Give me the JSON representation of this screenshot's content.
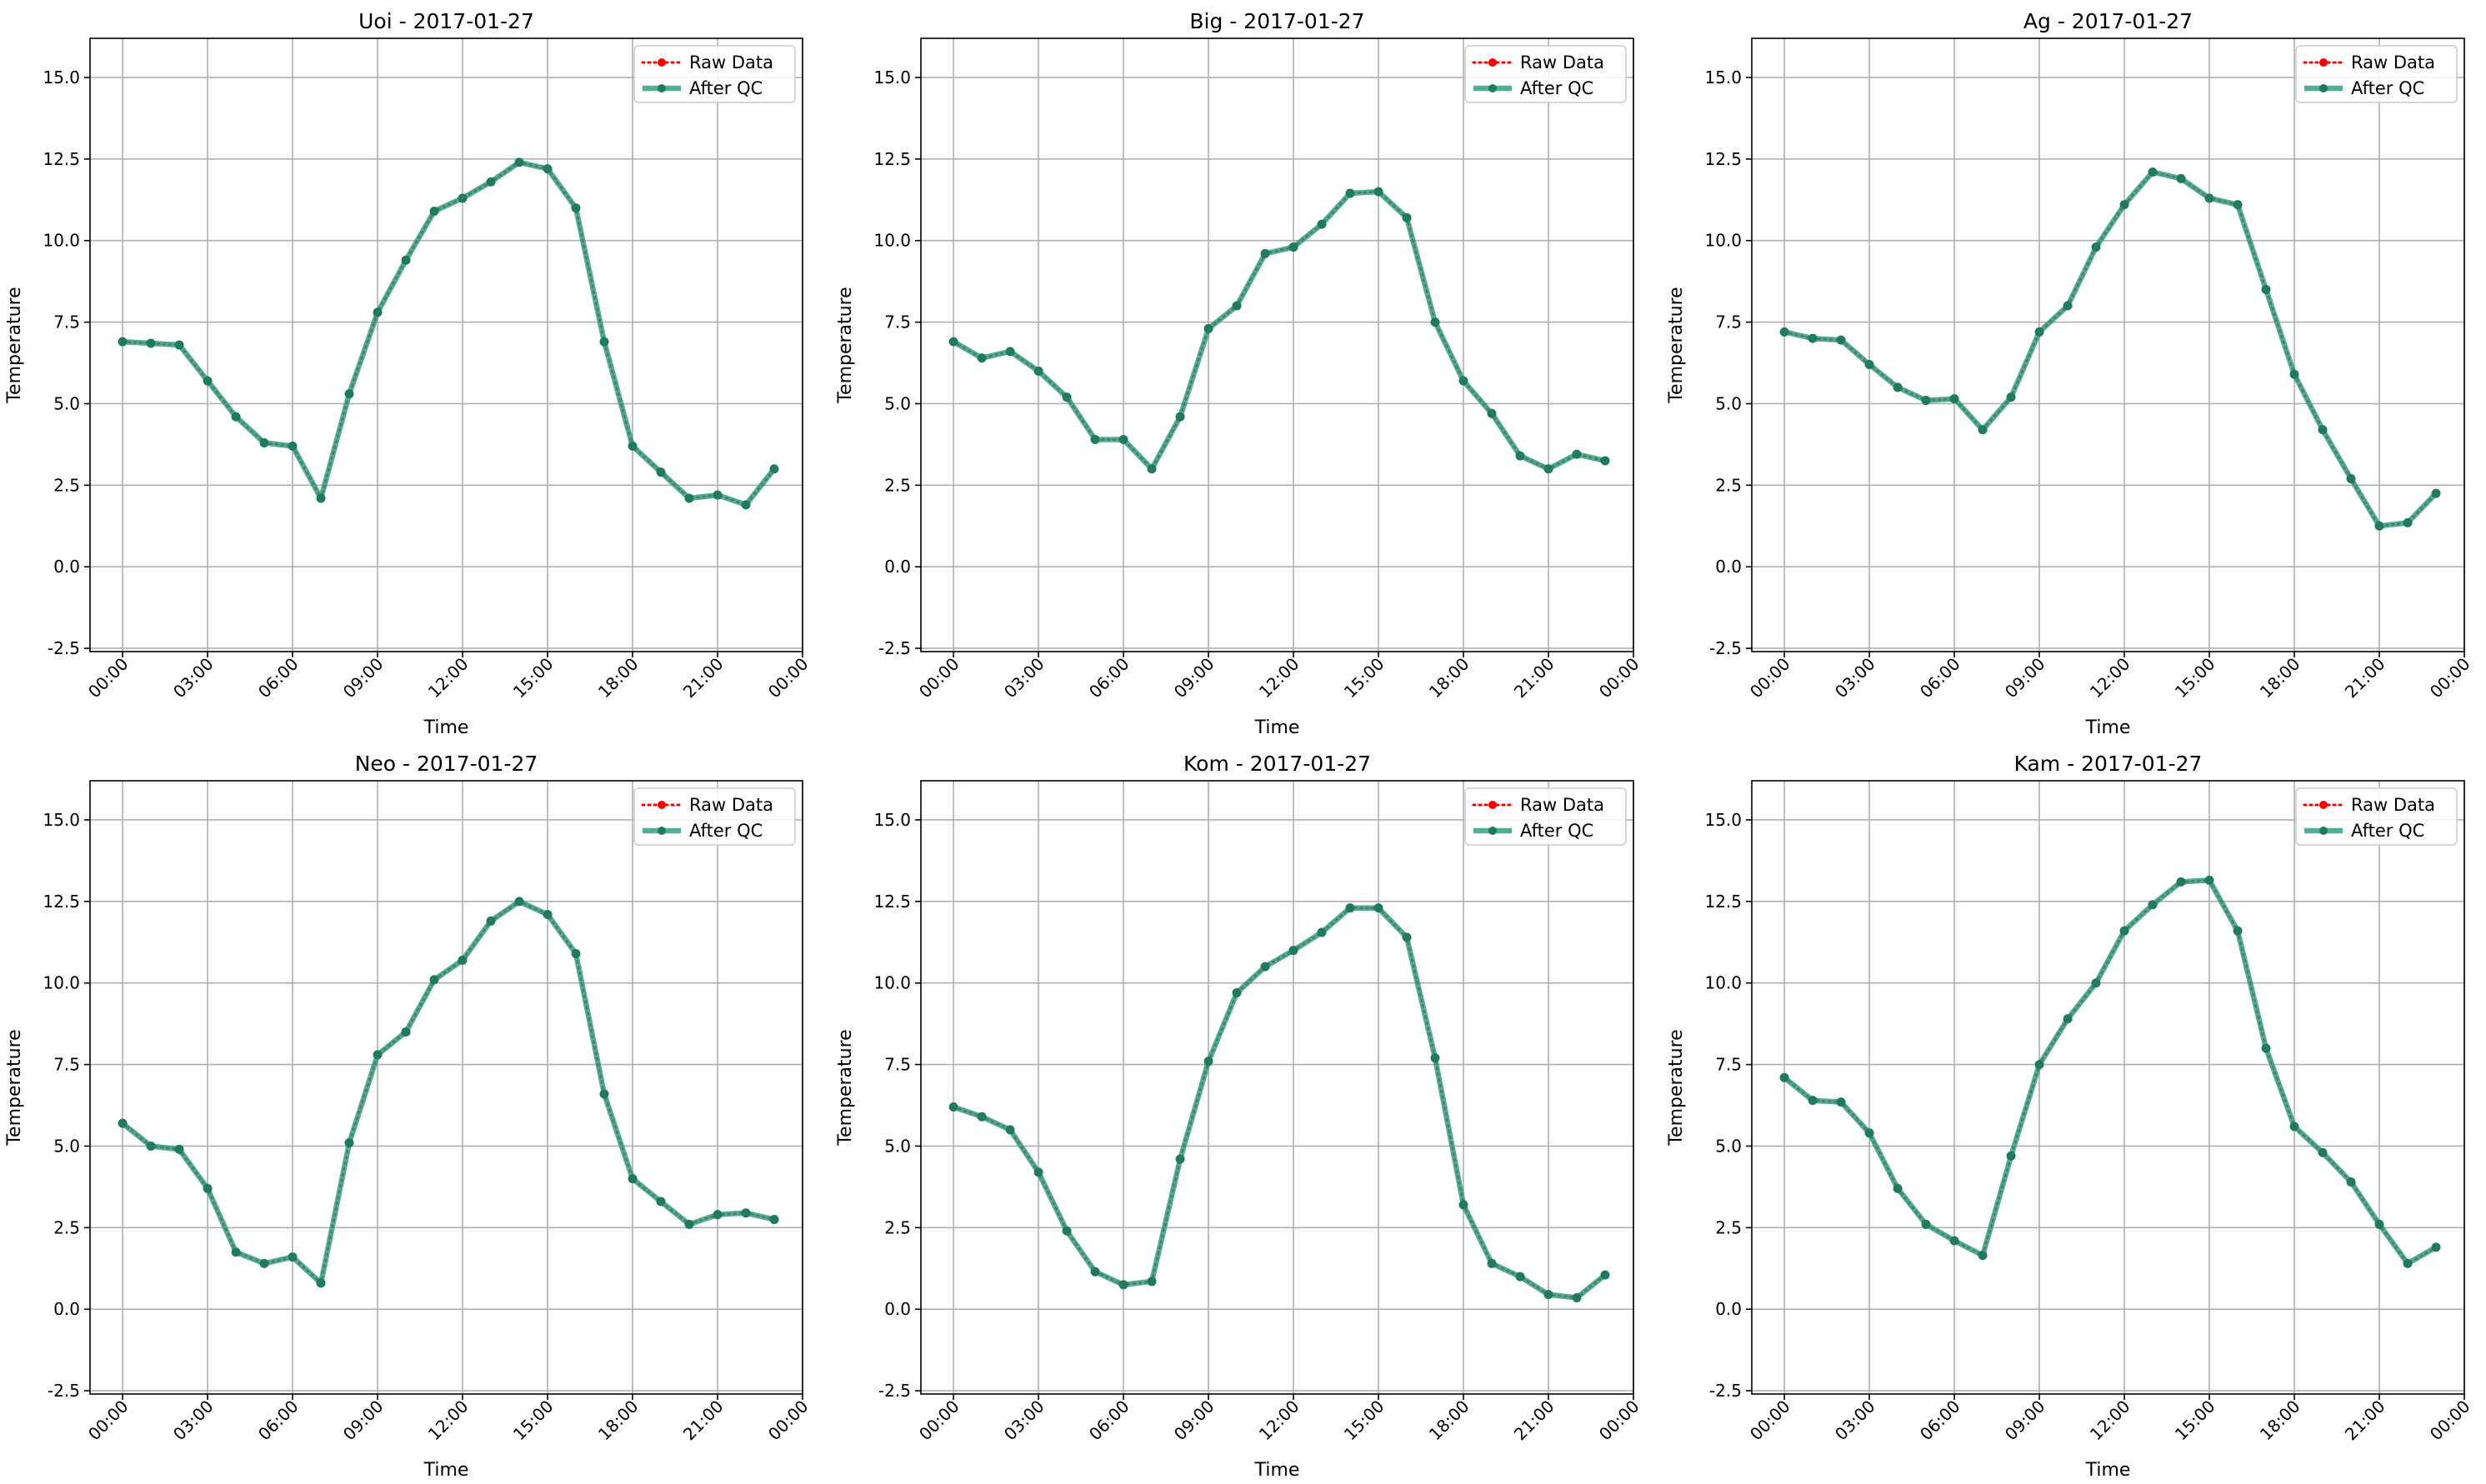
{
  "colors": {
    "raw": "#ff0000",
    "qc": "#2a9d7c",
    "grid": "#b0b0b0",
    "axes": "#000000"
  },
  "legend": {
    "raw_label": "Raw Data",
    "qc_label": "After QC",
    "placement": "upper right"
  },
  "chart_data": [
    {
      "type": "line",
      "title": "Uoi - 2017-01-27",
      "xlabel": "Time",
      "ylabel": "Temperature",
      "ylim": [
        -2.6,
        16.2
      ],
      "yticks": [
        -2.5,
        0.0,
        2.5,
        5.0,
        7.5,
        10.0,
        12.5,
        15.0
      ],
      "xticks": [
        "00:00",
        "03:00",
        "06:00",
        "09:00",
        "12:00",
        "15:00",
        "18:00",
        "21:00",
        "00:00"
      ],
      "x": [
        "00:00",
        "01:00",
        "02:00",
        "03:00",
        "04:00",
        "05:00",
        "06:00",
        "07:00",
        "08:00",
        "09:00",
        "10:00",
        "11:00",
        "12:00",
        "13:00",
        "14:00",
        "15:00",
        "16:00",
        "17:00",
        "18:00",
        "19:00",
        "20:00",
        "21:00",
        "22:00",
        "23:00"
      ],
      "grid": true,
      "series": [
        {
          "name": "Raw Data",
          "values": [
            6.9,
            6.85,
            6.8,
            5.7,
            4.6,
            3.8,
            3.7,
            2.1,
            5.3,
            7.8,
            9.4,
            10.9,
            11.3,
            11.8,
            12.4,
            12.2,
            11.0,
            6.9,
            3.7,
            2.9,
            2.1,
            2.2,
            1.9,
            3.0
          ]
        },
        {
          "name": "After QC",
          "values": [
            6.9,
            6.85,
            6.8,
            5.7,
            4.6,
            3.8,
            3.7,
            2.1,
            5.3,
            7.8,
            9.4,
            10.9,
            11.3,
            11.8,
            12.4,
            12.2,
            11.0,
            6.9,
            3.7,
            2.9,
            2.1,
            2.2,
            1.9,
            3.0
          ]
        }
      ]
    },
    {
      "type": "line",
      "title": "Big - 2017-01-27",
      "xlabel": "Time",
      "ylabel": "Temperature",
      "ylim": [
        -2.6,
        16.2
      ],
      "yticks": [
        -2.5,
        0.0,
        2.5,
        5.0,
        7.5,
        10.0,
        12.5,
        15.0
      ],
      "xticks": [
        "00:00",
        "03:00",
        "06:00",
        "09:00",
        "12:00",
        "15:00",
        "18:00",
        "21:00",
        "00:00"
      ],
      "x": [
        "00:00",
        "01:00",
        "02:00",
        "03:00",
        "04:00",
        "05:00",
        "06:00",
        "07:00",
        "08:00",
        "09:00",
        "10:00",
        "11:00",
        "12:00",
        "13:00",
        "14:00",
        "15:00",
        "16:00",
        "17:00",
        "18:00",
        "19:00",
        "20:00",
        "21:00",
        "22:00",
        "23:00"
      ],
      "grid": true,
      "series": [
        {
          "name": "Raw Data",
          "values": [
            6.9,
            6.4,
            6.6,
            6.0,
            5.2,
            3.9,
            3.9,
            3.0,
            4.6,
            7.3,
            8.0,
            9.6,
            9.8,
            10.5,
            11.45,
            11.5,
            10.7,
            7.5,
            5.7,
            4.7,
            3.4,
            3.0,
            3.45,
            3.25
          ]
        },
        {
          "name": "After QC",
          "values": [
            6.9,
            6.4,
            6.6,
            6.0,
            5.2,
            3.9,
            3.9,
            3.0,
            4.6,
            7.3,
            8.0,
            9.6,
            9.8,
            10.5,
            11.45,
            11.5,
            10.7,
            7.5,
            5.7,
            4.7,
            3.4,
            3.0,
            3.45,
            3.25
          ]
        }
      ]
    },
    {
      "type": "line",
      "title": "Ag - 2017-01-27",
      "xlabel": "Time",
      "ylabel": "Temperature",
      "ylim": [
        -2.6,
        16.2
      ],
      "yticks": [
        -2.5,
        0.0,
        2.5,
        5.0,
        7.5,
        10.0,
        12.5,
        15.0
      ],
      "xticks": [
        "00:00",
        "03:00",
        "06:00",
        "09:00",
        "12:00",
        "15:00",
        "18:00",
        "21:00",
        "00:00"
      ],
      "x": [
        "00:00",
        "01:00",
        "02:00",
        "03:00",
        "04:00",
        "05:00",
        "06:00",
        "07:00",
        "08:00",
        "09:00",
        "10:00",
        "11:00",
        "12:00",
        "13:00",
        "14:00",
        "15:00",
        "16:00",
        "17:00",
        "18:00",
        "19:00",
        "20:00",
        "21:00",
        "22:00",
        "23:00"
      ],
      "grid": true,
      "series": [
        {
          "name": "Raw Data",
          "values": [
            7.2,
            7.0,
            6.95,
            6.2,
            5.5,
            5.1,
            5.15,
            4.2,
            5.2,
            7.2,
            8.0,
            9.8,
            11.1,
            12.1,
            11.9,
            11.3,
            11.1,
            8.5,
            5.9,
            4.2,
            2.7,
            1.25,
            1.35,
            2.25
          ]
        },
        {
          "name": "After QC",
          "values": [
            7.2,
            7.0,
            6.95,
            6.2,
            5.5,
            5.1,
            5.15,
            4.2,
            5.2,
            7.2,
            8.0,
            9.8,
            11.1,
            12.1,
            11.9,
            11.3,
            11.1,
            8.5,
            5.9,
            4.2,
            2.7,
            1.25,
            1.35,
            2.25
          ]
        }
      ]
    },
    {
      "type": "line",
      "title": "Neo - 2017-01-27",
      "xlabel": "Time",
      "ylabel": "Temperature",
      "ylim": [
        -2.6,
        16.2
      ],
      "yticks": [
        -2.5,
        0.0,
        2.5,
        5.0,
        7.5,
        10.0,
        12.5,
        15.0
      ],
      "xticks": [
        "00:00",
        "03:00",
        "06:00",
        "09:00",
        "12:00",
        "15:00",
        "18:00",
        "21:00",
        "00:00"
      ],
      "x": [
        "00:00",
        "01:00",
        "02:00",
        "03:00",
        "04:00",
        "05:00",
        "06:00",
        "07:00",
        "08:00",
        "09:00",
        "10:00",
        "11:00",
        "12:00",
        "13:00",
        "14:00",
        "15:00",
        "16:00",
        "17:00",
        "18:00",
        "19:00",
        "20:00",
        "21:00",
        "22:00",
        "23:00"
      ],
      "grid": true,
      "series": [
        {
          "name": "Raw Data",
          "values": [
            5.7,
            5.0,
            4.9,
            3.7,
            1.75,
            1.4,
            1.6,
            0.8,
            5.1,
            7.8,
            8.5,
            10.1,
            10.7,
            11.9,
            12.5,
            12.1,
            10.9,
            6.6,
            4.0,
            3.3,
            2.6,
            2.9,
            2.95,
            2.75
          ]
        },
        {
          "name": "After QC",
          "values": [
            5.7,
            5.0,
            4.9,
            3.7,
            1.75,
            1.4,
            1.6,
            0.8,
            5.1,
            7.8,
            8.5,
            10.1,
            10.7,
            11.9,
            12.5,
            12.1,
            10.9,
            6.6,
            4.0,
            3.3,
            2.6,
            2.9,
            2.95,
            2.75
          ]
        }
      ]
    },
    {
      "type": "line",
      "title": "Kom - 2017-01-27",
      "xlabel": "Time",
      "ylabel": "Temperature",
      "ylim": [
        -2.6,
        16.2
      ],
      "yticks": [
        -2.5,
        0.0,
        2.5,
        5.0,
        7.5,
        10.0,
        12.5,
        15.0
      ],
      "xticks": [
        "00:00",
        "03:00",
        "06:00",
        "09:00",
        "12:00",
        "15:00",
        "18:00",
        "21:00",
        "00:00"
      ],
      "x": [
        "00:00",
        "01:00",
        "02:00",
        "03:00",
        "04:00",
        "05:00",
        "06:00",
        "07:00",
        "08:00",
        "09:00",
        "10:00",
        "11:00",
        "12:00",
        "13:00",
        "14:00",
        "15:00",
        "16:00",
        "17:00",
        "18:00",
        "19:00",
        "20:00",
        "21:00",
        "22:00",
        "23:00"
      ],
      "grid": true,
      "series": [
        {
          "name": "Raw Data",
          "values": [
            6.2,
            5.9,
            5.5,
            4.2,
            2.4,
            1.15,
            0.75,
            0.85,
            4.6,
            7.6,
            9.7,
            10.5,
            11.0,
            11.55,
            12.3,
            12.3,
            11.4,
            7.7,
            3.2,
            1.4,
            1.0,
            0.45,
            0.35,
            1.05
          ]
        },
        {
          "name": "After QC",
          "values": [
            6.2,
            5.9,
            5.5,
            4.2,
            2.4,
            1.15,
            0.75,
            0.85,
            4.6,
            7.6,
            9.7,
            10.5,
            11.0,
            11.55,
            12.3,
            12.3,
            11.4,
            7.7,
            3.2,
            1.4,
            1.0,
            0.45,
            0.35,
            1.05
          ]
        }
      ]
    },
    {
      "type": "line",
      "title": "Kam - 2017-01-27",
      "xlabel": "Time",
      "ylabel": "Temperature",
      "ylim": [
        -2.6,
        16.2
      ],
      "yticks": [
        -2.5,
        0.0,
        2.5,
        5.0,
        7.5,
        10.0,
        12.5,
        15.0
      ],
      "xticks": [
        "00:00",
        "03:00",
        "06:00",
        "09:00",
        "12:00",
        "15:00",
        "18:00",
        "21:00",
        "00:00"
      ],
      "x": [
        "00:00",
        "01:00",
        "02:00",
        "03:00",
        "04:00",
        "05:00",
        "06:00",
        "07:00",
        "08:00",
        "09:00",
        "10:00",
        "11:00",
        "12:00",
        "13:00",
        "14:00",
        "15:00",
        "16:00",
        "17:00",
        "18:00",
        "19:00",
        "20:00",
        "21:00",
        "22:00",
        "23:00"
      ],
      "grid": true,
      "series": [
        {
          "name": "Raw Data",
          "values": [
            7.1,
            6.4,
            6.35,
            5.4,
            3.7,
            2.6,
            2.1,
            1.65,
            4.7,
            7.5,
            8.9,
            10.0,
            11.6,
            12.4,
            13.1,
            13.15,
            11.6,
            8.0,
            5.6,
            4.8,
            3.9,
            2.6,
            1.4,
            1.9
          ]
        },
        {
          "name": "After QC",
          "values": [
            7.1,
            6.4,
            6.35,
            5.4,
            3.7,
            2.6,
            2.1,
            1.65,
            4.7,
            7.5,
            8.9,
            10.0,
            11.6,
            12.4,
            13.1,
            13.15,
            11.6,
            8.0,
            5.6,
            4.8,
            3.9,
            2.6,
            1.4,
            1.9
          ]
        }
      ]
    }
  ]
}
